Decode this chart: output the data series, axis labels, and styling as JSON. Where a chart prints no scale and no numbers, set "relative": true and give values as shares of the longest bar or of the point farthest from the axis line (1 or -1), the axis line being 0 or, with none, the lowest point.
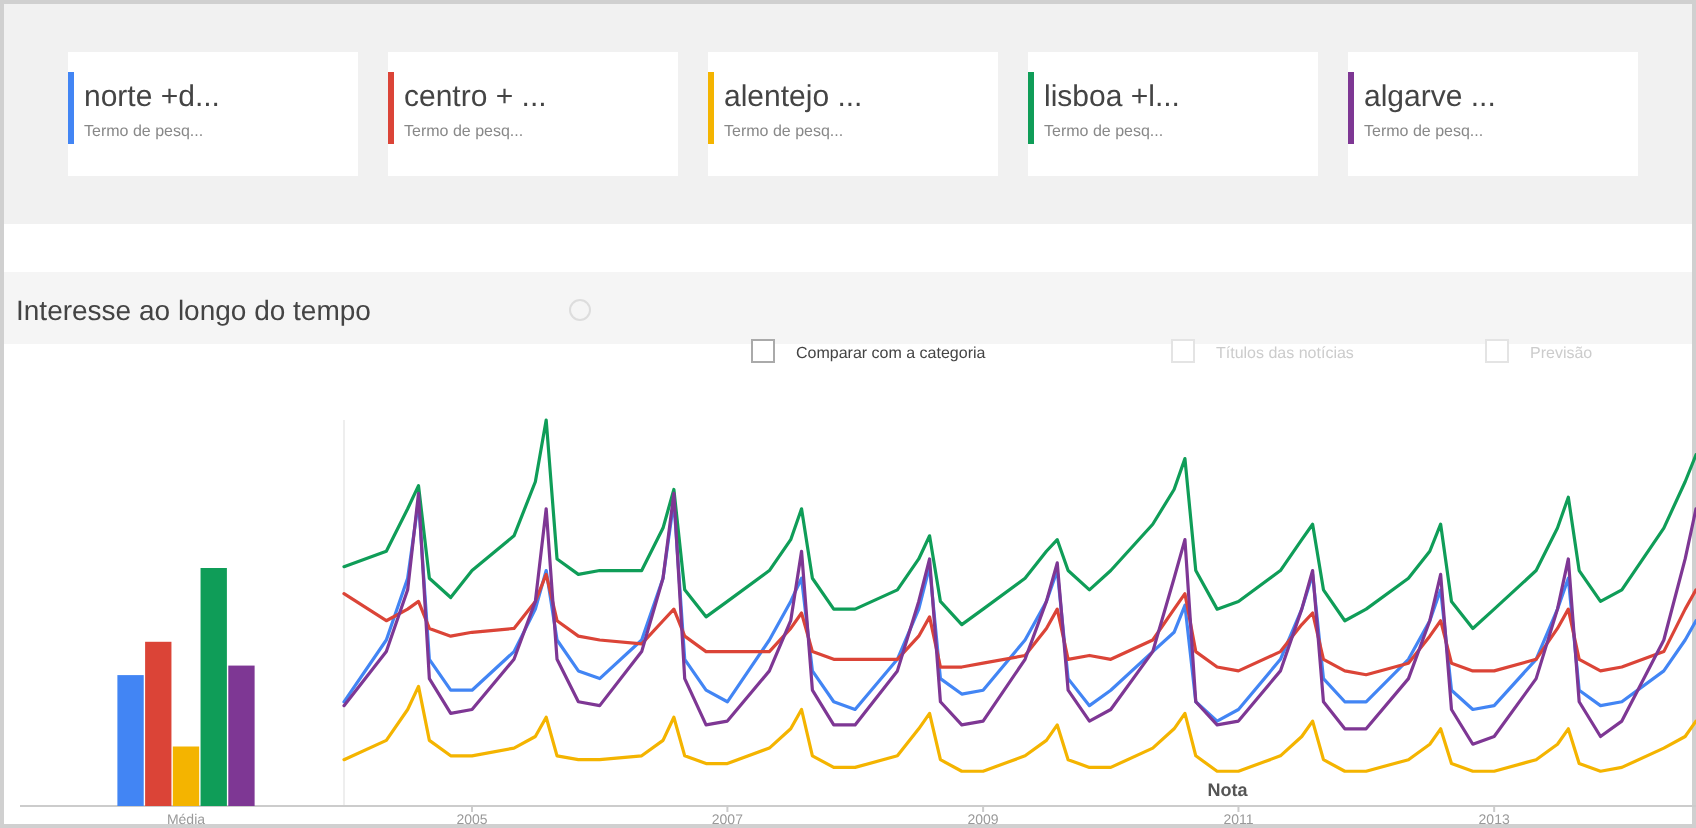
{
  "chart_data": [
    {
      "type": "line",
      "title": "Interesse ao longo do tempo",
      "relative": true,
      "legend": "top",
      "x": [
        "2004-01",
        "2004-05",
        "2004-07",
        "2004-08",
        "2004-09",
        "2004-11",
        "2005-01",
        "2005-05",
        "2005-07",
        "2005-08",
        "2005-09",
        "2005-11",
        "2006-01",
        "2006-05",
        "2006-07",
        "2006-08",
        "2006-09",
        "2006-11",
        "2007-01",
        "2007-05",
        "2007-07",
        "2007-08",
        "2007-09",
        "2007-11",
        "2008-01",
        "2008-05",
        "2008-07",
        "2008-08",
        "2008-09",
        "2008-11",
        "2009-01",
        "2009-05",
        "2009-07",
        "2009-08",
        "2009-09",
        "2009-11",
        "2010-01",
        "2010-05",
        "2010-07",
        "2010-08",
        "2010-09",
        "2010-11",
        "2011-01",
        "2011-05",
        "2011-07",
        "2011-08",
        "2011-09",
        "2011-11",
        "2012-01",
        "2012-05",
        "2012-07",
        "2012-08",
        "2012-09",
        "2012-11",
        "2013-01",
        "2013-05",
        "2013-07",
        "2013-08",
        "2013-09",
        "2013-11",
        "2014-01",
        "2014-05",
        "2014-07",
        "2014-08"
      ],
      "xlim": [
        "2004-01",
        "2014-08"
      ],
      "xticks": [
        {
          "value": "2005",
          "label": "2005"
        },
        {
          "value": "2007",
          "label": "2007"
        },
        {
          "value": "2009",
          "label": "2009"
        },
        {
          "value": "2011",
          "label": "2011"
        },
        {
          "value": "2013",
          "label": "2013"
        }
      ],
      "series": [
        {
          "name": "norte +d...",
          "color": "#4285f4",
          "values": [
            0.27,
            0.43,
            0.59,
            0.79,
            0.38,
            0.3,
            0.3,
            0.4,
            0.51,
            0.61,
            0.43,
            0.35,
            0.33,
            0.43,
            0.59,
            0.79,
            0.38,
            0.3,
            0.27,
            0.43,
            0.53,
            0.59,
            0.35,
            0.27,
            0.25,
            0.38,
            0.51,
            0.62,
            0.33,
            0.29,
            0.3,
            0.43,
            0.53,
            0.61,
            0.33,
            0.26,
            0.3,
            0.4,
            0.45,
            0.52,
            0.27,
            0.22,
            0.25,
            0.38,
            0.51,
            0.6,
            0.33,
            0.27,
            0.27,
            0.38,
            0.48,
            0.56,
            0.3,
            0.25,
            0.26,
            0.38,
            0.51,
            0.59,
            0.3,
            0.26,
            0.27,
            0.35,
            0.43,
            0.48
          ]
        },
        {
          "name": "centro + ...",
          "color": "#db4437",
          "values": [
            0.55,
            0.48,
            0.51,
            0.53,
            0.46,
            0.44,
            0.45,
            0.46,
            0.53,
            0.6,
            0.48,
            0.44,
            0.43,
            0.42,
            0.48,
            0.51,
            0.44,
            0.4,
            0.4,
            0.4,
            0.46,
            0.5,
            0.4,
            0.38,
            0.38,
            0.38,
            0.44,
            0.49,
            0.36,
            0.36,
            0.37,
            0.39,
            0.46,
            0.51,
            0.38,
            0.39,
            0.38,
            0.43,
            0.51,
            0.55,
            0.4,
            0.36,
            0.35,
            0.4,
            0.47,
            0.5,
            0.38,
            0.35,
            0.34,
            0.37,
            0.44,
            0.48,
            0.37,
            0.35,
            0.35,
            0.38,
            0.46,
            0.51,
            0.38,
            0.35,
            0.36,
            0.4,
            0.51,
            0.56
          ]
        },
        {
          "name": "alentejo ...",
          "color": "#f4b400",
          "values": [
            0.12,
            0.17,
            0.25,
            0.31,
            0.17,
            0.13,
            0.13,
            0.15,
            0.18,
            0.23,
            0.13,
            0.12,
            0.12,
            0.13,
            0.17,
            0.23,
            0.13,
            0.11,
            0.11,
            0.15,
            0.2,
            0.25,
            0.13,
            0.1,
            0.1,
            0.13,
            0.2,
            0.24,
            0.12,
            0.09,
            0.09,
            0.13,
            0.17,
            0.21,
            0.12,
            0.1,
            0.1,
            0.15,
            0.2,
            0.24,
            0.13,
            0.09,
            0.09,
            0.13,
            0.18,
            0.22,
            0.12,
            0.09,
            0.09,
            0.12,
            0.16,
            0.2,
            0.11,
            0.09,
            0.09,
            0.12,
            0.16,
            0.2,
            0.11,
            0.09,
            0.1,
            0.15,
            0.18,
            0.22
          ]
        },
        {
          "name": "lisboa +l...",
          "color": "#0f9d58",
          "values": [
            0.62,
            0.66,
            0.77,
            0.83,
            0.59,
            0.54,
            0.61,
            0.7,
            0.84,
            1.0,
            0.64,
            0.6,
            0.61,
            0.61,
            0.72,
            0.82,
            0.56,
            0.49,
            0.53,
            0.61,
            0.69,
            0.77,
            0.59,
            0.51,
            0.51,
            0.56,
            0.64,
            0.7,
            0.53,
            0.47,
            0.51,
            0.59,
            0.66,
            0.69,
            0.61,
            0.56,
            0.61,
            0.73,
            0.82,
            0.9,
            0.61,
            0.51,
            0.53,
            0.61,
            0.69,
            0.73,
            0.56,
            0.48,
            0.51,
            0.59,
            0.66,
            0.73,
            0.53,
            0.46,
            0.51,
            0.61,
            0.72,
            0.8,
            0.61,
            0.53,
            0.56,
            0.72,
            0.84,
            0.91
          ]
        },
        {
          "name": "algarve ...",
          "color": "#7e3794",
          "values": [
            0.26,
            0.4,
            0.56,
            0.81,
            0.33,
            0.24,
            0.25,
            0.38,
            0.53,
            0.77,
            0.38,
            0.27,
            0.26,
            0.4,
            0.59,
            0.81,
            0.33,
            0.21,
            0.22,
            0.35,
            0.48,
            0.66,
            0.3,
            0.21,
            0.21,
            0.35,
            0.53,
            0.64,
            0.27,
            0.21,
            0.22,
            0.38,
            0.53,
            0.63,
            0.3,
            0.22,
            0.25,
            0.4,
            0.59,
            0.69,
            0.27,
            0.21,
            0.22,
            0.35,
            0.51,
            0.61,
            0.27,
            0.2,
            0.2,
            0.33,
            0.48,
            0.6,
            0.25,
            0.16,
            0.18,
            0.33,
            0.51,
            0.64,
            0.27,
            0.18,
            0.22,
            0.43,
            0.64,
            0.77
          ]
        }
      ],
      "annotations": [
        "Termo de pesq...",
        "Termo de pesq...",
        "Termo de pesq...",
        "Termo de pesq...",
        "Termo de pesq...",
        "Comparar com a categoria",
        "Títulos das notícias",
        "Previsão",
        "Nota"
      ]
    },
    {
      "type": "bar",
      "relative": true,
      "xlabel": "Média",
      "categories": [
        null,
        null,
        null,
        null,
        null
      ],
      "values": [
        0.55,
        0.69,
        0.25,
        1,
        0.59
      ],
      "colors": [
        "#4285f4",
        "#db4437",
        "#f4b400",
        "#0f9d58",
        "#7e3794"
      ]
    }
  ]
}
